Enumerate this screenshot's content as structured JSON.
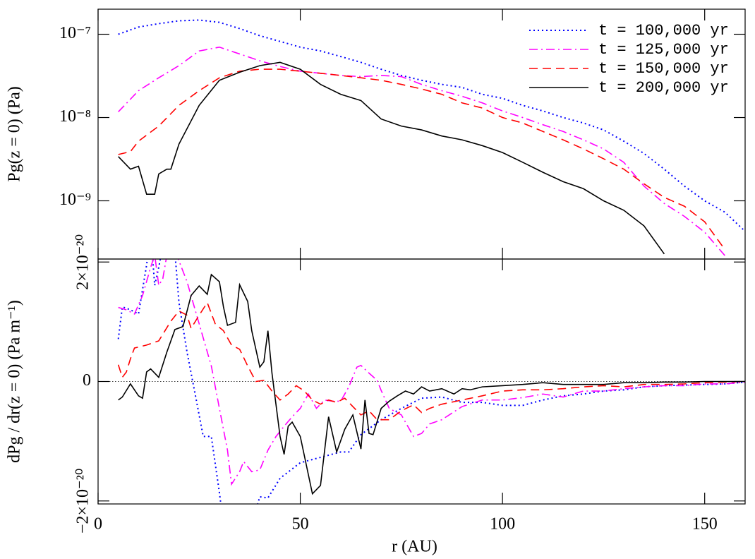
{
  "chart_data": [
    {
      "type": "line",
      "ylabel": "Pg(z = 0)  (Pa)",
      "yscale": "log",
      "xlim": [
        0,
        160
      ],
      "xticks": [
        0,
        50,
        100,
        150
      ],
      "ylim": [
        2e-10,
        2e-07
      ],
      "yticks": [
        {
          "value": 1e-07,
          "label": "10⁻⁷"
        },
        {
          "value": 1e-08,
          "label": "10⁻⁸"
        },
        {
          "value": 1e-09,
          "label": "10⁻⁹"
        }
      ],
      "legend": "upper right",
      "series": [
        {
          "name": "t = 100,000 yr",
          "color": "#0000ff",
          "dash": "dotted",
          "x": [
            5,
            10,
            15,
            20,
            25,
            30,
            35,
            40,
            45,
            50,
            55,
            60,
            65,
            70,
            75,
            80,
            85,
            90,
            95,
            100,
            105,
            110,
            115,
            120,
            125,
            130,
            135,
            140,
            145,
            150,
            155,
            160
          ],
          "values": [
            1e-07,
            1.22e-07,
            1.34e-07,
            1.45e-07,
            1.48e-07,
            1.39e-07,
            1.17e-07,
            9.6e-08,
            8.2e-08,
            7e-08,
            6.3e-08,
            5.4e-08,
            4.6e-08,
            3.8e-08,
            3.2e-08,
            2.8e-08,
            2.5e-08,
            2.3e-08,
            1.9e-08,
            1.7e-08,
            1.4e-08,
            1.2e-08,
            1e-08,
            8.6e-09,
            7.1e-09,
            5.2e-09,
            3.7e-09,
            2.4e-09,
            1.5e-09,
            1e-09,
            7.3e-10,
            4.3e-10
          ]
        },
        {
          "name": "t = 125,000 yr",
          "color": "#ff00ff",
          "dash": "dashdot",
          "x": [
            5,
            10,
            15,
            20,
            25,
            30,
            35,
            40,
            45,
            50,
            55,
            60,
            65,
            70,
            75,
            80,
            85,
            90,
            95,
            100,
            105,
            110,
            115,
            120,
            125,
            130,
            135,
            140,
            145,
            150,
            155
          ],
          "values": [
            1.17e-08,
            2.1e-08,
            3e-08,
            4.2e-08,
            6.3e-08,
            7e-08,
            5.8e-08,
            4.8e-08,
            4.1e-08,
            3.6e-08,
            3.4e-08,
            3.2e-08,
            3.1e-08,
            3.2e-08,
            3.1e-08,
            2.5e-08,
            2.1e-08,
            1.8e-08,
            1.5e-08,
            1.2e-08,
            1e-08,
            8.2e-09,
            6.8e-09,
            5.4e-09,
            4.2e-09,
            2.9e-09,
            1.5e-09,
            9.3e-10,
            6.5e-10,
            4.2e-10,
            2.2e-10
          ]
        },
        {
          "name": "t = 150,000 yr",
          "color": "#ff0000",
          "dash": "dashed",
          "x": [
            5,
            8,
            10,
            15,
            20,
            25,
            30,
            35,
            40,
            45,
            50,
            55,
            60,
            65,
            70,
            75,
            80,
            85,
            90,
            95,
            100,
            105,
            110,
            115,
            120,
            125,
            130,
            135,
            140,
            145,
            150,
            155
          ],
          "values": [
            3.6e-09,
            3.9e-09,
            5.2e-09,
            7.9e-09,
            1.4e-08,
            2.1e-08,
            3e-08,
            3.6e-08,
            3.8e-08,
            3.8e-08,
            3.6e-08,
            3.4e-08,
            3.2e-08,
            3e-08,
            2.8e-08,
            2.5e-08,
            2.2e-08,
            1.9e-08,
            1.5e-08,
            1.3e-08,
            1e-08,
            8.6e-09,
            6.8e-09,
            5.4e-09,
            4.2e-09,
            3.2e-09,
            2.4e-09,
            1.6e-09,
            1.1e-09,
            8.6e-10,
            5.6e-10,
            2.6e-10
          ]
        },
        {
          "name": "t = 200,000 yr",
          "color": "#000000",
          "dash": "solid",
          "x": [
            5,
            8,
            10,
            12,
            14,
            15,
            17,
            18,
            20,
            25,
            30,
            35,
            40,
            45,
            50,
            55,
            60,
            65,
            70,
            75,
            80,
            85,
            90,
            95,
            100,
            105,
            110,
            115,
            120,
            125,
            130,
            135,
            140
          ],
          "values": [
            3.4e-09,
            2.4e-09,
            2.6e-09,
            1.2e-09,
            1.2e-09,
            2.1e-09,
            2.4e-09,
            2.4e-09,
            4.8e-09,
            1.4e-08,
            2.8e-08,
            3.5e-08,
            4.2e-08,
            4.6e-08,
            3.8e-08,
            2.5e-08,
            1.9e-08,
            1.6e-08,
            9.6e-09,
            7.9e-09,
            7.1e-09,
            6e-09,
            5.4e-09,
            4.6e-09,
            3.8e-09,
            2.9e-09,
            2.2e-09,
            1.7e-09,
            1.4e-09,
            1e-09,
            7.7e-10,
            5e-10,
            2.3e-10
          ]
        }
      ]
    },
    {
      "type": "line",
      "xlabel": "r  (AU)",
      "ylabel": "dPg / dr(z = 0)  (Pa m⁻¹)",
      "yscale": "linear",
      "zero_line": true,
      "xlim": [
        0,
        160
      ],
      "xticks": [
        0,
        50,
        100,
        150
      ],
      "ylim": [
        -2.05e-20,
        2.05e-20
      ],
      "yticks": [
        {
          "value": -2e-20,
          "label": "−2×10⁻²⁰"
        },
        0,
        {
          "value": 2e-20,
          "label": "2×10⁻²⁰"
        }
      ],
      "series": [
        {
          "name": "t = 100,000 yr",
          "color": "#0000ff",
          "dash": "dotted",
          "x": [
            5,
            6,
            8,
            10,
            12,
            13,
            14,
            15,
            18,
            20,
            22,
            24,
            26,
            28,
            30,
            32,
            35,
            40,
            42,
            45,
            50,
            55,
            60,
            62,
            65,
            70,
            75,
            80,
            85,
            90,
            95,
            100,
            105,
            110,
            115,
            120,
            125,
            130,
            135,
            140,
            145,
            150,
            155,
            160
          ],
          "values": [
            7.1e-21,
            1.25e-20,
            1.2e-20,
            1.13e-20,
            1.95e-20,
            2.5e-20,
            1.61e-20,
            1.91e-20,
            3e-20,
            1.32e-20,
            4.9e-21,
            -2.1e-21,
            -9.2e-21,
            -9.2e-21,
            -1.86e-20,
            -2.92e-20,
            -3.04e-20,
            -1.93e-20,
            -1.95e-20,
            -1.62e-20,
            -1.36e-20,
            -1.27e-20,
            -1.18e-20,
            -1.18e-20,
            -8.9e-21,
            -6.4e-21,
            -4.5e-21,
            -2.8e-21,
            -2.6e-21,
            -3.5e-21,
            -3.5e-21,
            -4e-21,
            -4e-21,
            -3.1e-21,
            -2.4e-21,
            -2.1e-21,
            -1.6e-21,
            -1.4e-21,
            -9e-22,
            -7e-22,
            -6e-22,
            -5e-22,
            -4e-22,
            -1e-22
          ]
        },
        {
          "name": "t = 125,000 yr",
          "color": "#ff00ff",
          "dash": "dashdot",
          "x": [
            5,
            7,
            9,
            11,
            13,
            14,
            15,
            16,
            18,
            20,
            22,
            24,
            26,
            28,
            30,
            32,
            33,
            35,
            36,
            38,
            40,
            42,
            44,
            46,
            48,
            50,
            52,
            54,
            56,
            58,
            60,
            62,
            64,
            65,
            67,
            69,
            70,
            72,
            75,
            78,
            80,
            82,
            85,
            90,
            95,
            100,
            105,
            110,
            115,
            120,
            125,
            130,
            135,
            140,
            145,
            150,
            155,
            160
          ],
          "values": [
            1.24e-20,
            1.2e-20,
            1.13e-20,
            1.44e-20,
            1.91e-20,
            2.12e-20,
            1.61e-20,
            1.72e-20,
            2.5e-20,
            2.02e-20,
            1.67e-20,
            1.2e-20,
            7.3e-21,
            2.6e-21,
            -4.5e-21,
            -1.15e-20,
            -1.72e-20,
            -1.51e-20,
            -1.34e-20,
            -1.51e-20,
            -1.48e-20,
            -1.15e-20,
            -9.2e-21,
            -7.5e-21,
            -5.9e-21,
            -4.5e-21,
            -2.1e-21,
            -4.5e-21,
            -3.1e-21,
            -3.3e-21,
            -3.3e-21,
            -9e-22,
            2.4e-21,
            2.7e-21,
            1.4e-21,
            2e-22,
            -1.5e-21,
            -4.5e-21,
            -5.6e-21,
            -9.2e-21,
            -8.7e-21,
            -7.1e-21,
            -6.4e-21,
            -4.2e-21,
            -3.1e-21,
            -3.1e-21,
            -2.7e-21,
            -2.1e-21,
            -2.6e-21,
            -1.6e-21,
            -1.6e-21,
            -1.2e-21,
            -9e-22,
            -7e-22,
            -7e-22,
            -4e-22,
            -4e-22,
            -1e-22
          ]
        },
        {
          "name": "t = 150,000 yr",
          "color": "#ff0000",
          "dash": "dashed",
          "x": [
            5,
            6,
            7,
            8,
            9,
            12,
            15,
            18,
            20,
            22,
            23,
            25,
            27,
            29,
            31,
            33,
            35,
            37,
            39,
            41,
            43,
            45,
            47,
            49,
            51,
            53,
            55,
            57,
            59,
            61,
            63,
            65,
            67,
            69,
            72,
            75,
            78,
            80,
            82,
            85,
            90,
            95,
            100,
            105,
            110,
            115,
            120,
            125,
            130,
            135,
            140,
            145,
            150,
            155,
            160
          ],
          "values": [
            2.8e-21,
            7e-22,
            1.6e-21,
            3.8e-21,
            5.6e-21,
            6.1e-21,
            6.8e-21,
            1.01e-20,
            1.18e-20,
            1.11e-20,
            8.9e-21,
            1.11e-20,
            1.32e-20,
            9.6e-21,
            8.5e-21,
            6.1e-21,
            5.4e-21,
            2.6e-21,
            0,
            2e-22,
            -1.6e-21,
            -3.1e-21,
            -2.1e-21,
            -7e-22,
            -1.6e-21,
            -3.1e-21,
            -3.8e-21,
            -3.1e-21,
            -3.5e-21,
            -2.8e-21,
            -4.2e-21,
            -5.6e-21,
            -4.9e-21,
            -6.4e-21,
            -6.4e-21,
            -4.9e-21,
            -3.9e-21,
            -5.2e-21,
            -4.5e-21,
            -3.8e-21,
            -3.1e-21,
            -2.4e-21,
            -1.6e-21,
            -1.4e-21,
            -1.4e-21,
            -1.2e-21,
            -9e-22,
            -7e-22,
            -9e-22,
            -5e-22,
            -5e-22,
            -4e-22,
            -2e-22,
            -1e-22,
            0
          ]
        },
        {
          "name": "t = 200,000 yr",
          "color": "#000000",
          "dash": "solid",
          "x": [
            5,
            6,
            8,
            10,
            11,
            12,
            13,
            15,
            17,
            19,
            21,
            23,
            25,
            27,
            28,
            30,
            31,
            32,
            34,
            35,
            37,
            38,
            40,
            41,
            42,
            43,
            45,
            46,
            47,
            48,
            50,
            53,
            55,
            57,
            59,
            61,
            63,
            65,
            66,
            67,
            68,
            70,
            72,
            74,
            76,
            78,
            80,
            82,
            85,
            88,
            90,
            92,
            95,
            100,
            105,
            110,
            115,
            120,
            125,
            130,
            135,
            140,
            145,
            150,
            155,
            160
          ],
          "values": [
            -3.1e-21,
            -2.6e-21,
            -4e-22,
            -2.4e-21,
            -2.8e-21,
            1.6e-21,
            2.1e-21,
            7e-22,
            4.9e-21,
            8.7e-21,
            9.2e-21,
            1.44e-20,
            1.6e-20,
            1.46e-20,
            1.79e-20,
            1.67e-20,
            1.25e-20,
            9.4e-21,
            9.9e-21,
            1.62e-20,
            1.34e-20,
            8.5e-21,
            2.4e-21,
            3.3e-21,
            8.5e-21,
            1.4e-21,
            -9.2e-21,
            -1.22e-20,
            -7.5e-21,
            -6.8e-21,
            -9.2e-21,
            -1.88e-20,
            -1.74e-20,
            -5.9e-21,
            -1.18e-20,
            -8e-21,
            -5.6e-21,
            -1.13e-20,
            -3.1e-21,
            -8.7e-21,
            -8.9e-21,
            -4.5e-21,
            -3.3e-21,
            -2.4e-21,
            -1.6e-21,
            -2.1e-21,
            -9e-22,
            -1.6e-21,
            -1.2e-21,
            -2.1e-21,
            -1.2e-21,
            -1.4e-21,
            -9e-22,
            -7e-22,
            -5e-22,
            -2e-22,
            -5e-22,
            -5e-22,
            -5e-22,
            -2e-22,
            -2e-22,
            -1e-22,
            -1e-22,
            0,
            0,
            0
          ]
        }
      ]
    }
  ]
}
